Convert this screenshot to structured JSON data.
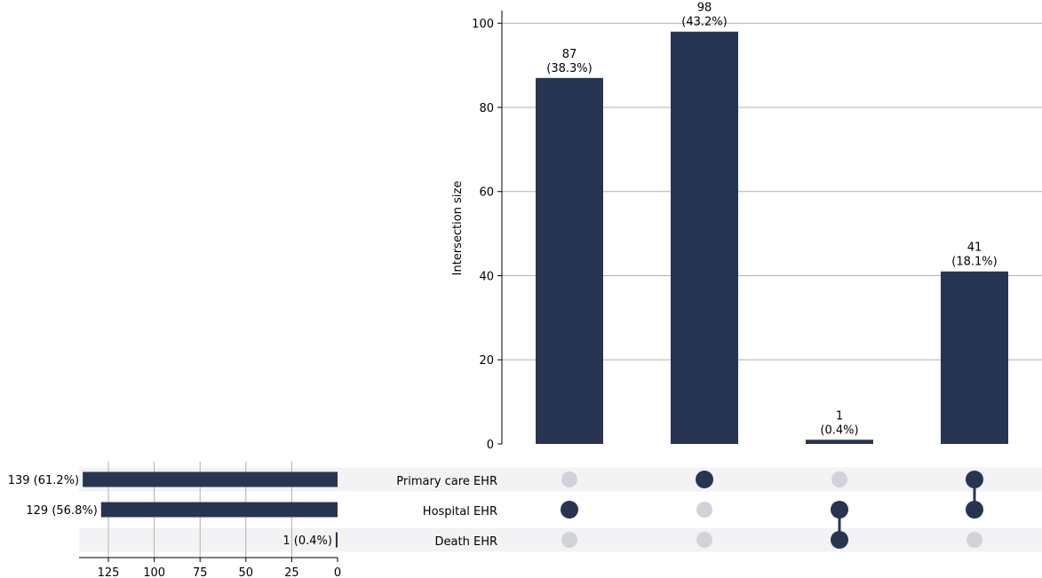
{
  "chart_data": {
    "type": "bar",
    "subtype": "upset",
    "ylabel": "Intersection size",
    "ylim": [
      0,
      103
    ],
    "yticks": [
      0,
      20,
      40,
      60,
      80,
      100
    ],
    "sets": [
      "Primary care EHR",
      "Hospital EHR",
      "Death EHR"
    ],
    "intersections": [
      {
        "members": [
          false,
          true,
          false
        ],
        "value": 87,
        "label": "87",
        "pct_label": "(38.3%)"
      },
      {
        "members": [
          true,
          false,
          false
        ],
        "value": 98,
        "label": "98",
        "pct_label": "(43.2%)"
      },
      {
        "members": [
          false,
          true,
          true
        ],
        "value": 1,
        "label": "1",
        "pct_label": "(0.4%)"
      },
      {
        "members": [
          true,
          true,
          false
        ],
        "value": 41,
        "label": "41",
        "pct_label": "(18.1%)"
      }
    ],
    "set_sizes": {
      "values": [
        139,
        129,
        1
      ],
      "labels": [
        "139 (61.2%)",
        "129 (56.8%)",
        "1 (0.4%)"
      ],
      "xlim": [
        141,
        0
      ],
      "xticks": [
        125,
        100,
        75,
        50,
        25,
        0
      ]
    },
    "colors": {
      "bar": "#283552",
      "dot_inactive": "#d0d3d9",
      "row_shade": "#f3f3f5",
      "grid": "#b0b0b0"
    }
  }
}
